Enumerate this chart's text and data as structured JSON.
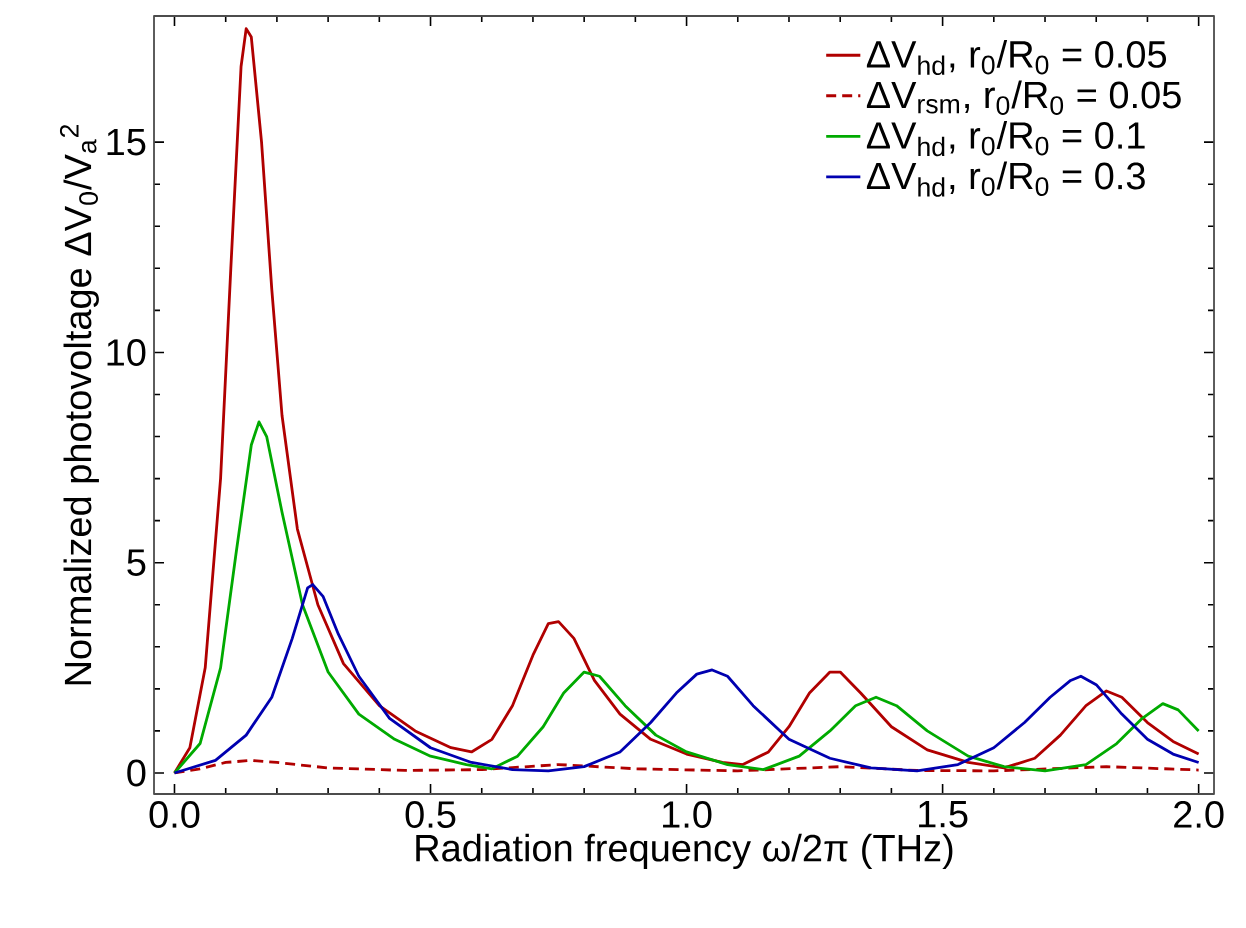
{
  "chart_data": {
    "type": "line",
    "xlabel": "Radiation frequency ω/2π (THz)",
    "ylabel": "Normalized photovoltage  ΔV$_{0}$/V$_{a}$$^{2}$",
    "xlim": [
      -0.04,
      2.03
    ],
    "ylim": [
      -0.5,
      18
    ],
    "xticks": [
      {
        "value": 0,
        "label": "0.0"
      },
      0.5,
      {
        "value": 1,
        "label": "1.0"
      },
      1.5,
      {
        "value": 2,
        "label": "2.0"
      }
    ],
    "yticks": [
      0,
      5,
      10,
      15
    ],
    "legend": "top right",
    "marker": "none",
    "series": [
      {
        "name": "ΔV$_{hd}$, r$_{0}$/R$_{0}$ = 0.05",
        "color": "#b00000",
        "line_style": "solid",
        "x": [
          0,
          0.03,
          0.06,
          0.09,
          0.11,
          0.13,
          0.14,
          0.15,
          0.17,
          0.19,
          0.21,
          0.24,
          0.28,
          0.33,
          0.4,
          0.47,
          0.54,
          0.58,
          0.62,
          0.66,
          0.7,
          0.73,
          0.75,
          0.78,
          0.82,
          0.87,
          0.93,
          1.0,
          1.07,
          1.11,
          1.16,
          1.2,
          1.24,
          1.28,
          1.3,
          1.34,
          1.4,
          1.47,
          1.55,
          1.62,
          1.68,
          1.73,
          1.78,
          1.82,
          1.85,
          1.9,
          1.95,
          2.0
        ],
        "values": [
          0,
          0.6,
          2.5,
          7,
          12,
          16.8,
          17.7,
          17.5,
          15,
          11.5,
          8.5,
          5.8,
          4.0,
          2.6,
          1.6,
          1.0,
          0.6,
          0.5,
          0.8,
          1.6,
          2.8,
          3.55,
          3.6,
          3.2,
          2.2,
          1.4,
          0.8,
          0.45,
          0.25,
          0.2,
          0.5,
          1.1,
          1.9,
          2.4,
          2.4,
          1.9,
          1.1,
          0.55,
          0.25,
          0.12,
          0.35,
          0.9,
          1.6,
          1.95,
          1.8,
          1.2,
          0.75,
          0.45
        ]
      },
      {
        "name": "ΔV$_{rsm}$, r$_{0}$/R$_{0}$ = 0.05",
        "color": "#b00000",
        "line_style": "dashed",
        "x": [
          0,
          0.05,
          0.1,
          0.15,
          0.2,
          0.3,
          0.45,
          0.6,
          0.75,
          0.9,
          1.1,
          1.3,
          1.45,
          1.6,
          1.82,
          2.0
        ],
        "values": [
          0,
          0.1,
          0.25,
          0.3,
          0.25,
          0.12,
          0.06,
          0.08,
          0.2,
          0.1,
          0.05,
          0.15,
          0.06,
          0.05,
          0.15,
          0.07
        ]
      },
      {
        "name": "ΔV$_{hd}$, r$_{0}$/R$_{0}$ = 0.1",
        "color": "#00aa00",
        "line_style": "solid",
        "x": [
          0,
          0.05,
          0.09,
          0.12,
          0.15,
          0.165,
          0.18,
          0.21,
          0.25,
          0.3,
          0.36,
          0.43,
          0.5,
          0.57,
          0.62,
          0.67,
          0.72,
          0.76,
          0.8,
          0.83,
          0.88,
          0.94,
          1.0,
          1.08,
          1.15,
          1.22,
          1.28,
          1.33,
          1.37,
          1.41,
          1.47,
          1.55,
          1.62,
          1.7,
          1.78,
          1.84,
          1.89,
          1.93,
          1.96,
          2.0
        ],
        "values": [
          0,
          0.7,
          2.5,
          5.2,
          7.8,
          8.35,
          8.0,
          6.2,
          4.0,
          2.4,
          1.4,
          0.8,
          0.4,
          0.2,
          0.1,
          0.4,
          1.1,
          1.9,
          2.4,
          2.3,
          1.6,
          0.9,
          0.5,
          0.2,
          0.08,
          0.4,
          1.0,
          1.6,
          1.8,
          1.6,
          1.0,
          0.4,
          0.15,
          0.05,
          0.2,
          0.7,
          1.3,
          1.65,
          1.5,
          1.0
        ]
      },
      {
        "name": "ΔV$_{hd}$, r$_{0}$/R$_{0}$ = 0.3",
        "color": "#0000b0",
        "line_style": "solid",
        "x": [
          0,
          0.08,
          0.14,
          0.19,
          0.23,
          0.26,
          0.27,
          0.29,
          0.32,
          0.36,
          0.42,
          0.5,
          0.58,
          0.66,
          0.73,
          0.8,
          0.87,
          0.93,
          0.98,
          1.02,
          1.05,
          1.08,
          1.13,
          1.2,
          1.28,
          1.36,
          1.45,
          1.53,
          1.6,
          1.66,
          1.71,
          1.75,
          1.77,
          1.8,
          1.85,
          1.9,
          1.95,
          2.0
        ],
        "values": [
          0,
          0.3,
          0.9,
          1.8,
          3.2,
          4.4,
          4.48,
          4.2,
          3.3,
          2.3,
          1.3,
          0.6,
          0.25,
          0.08,
          0.05,
          0.15,
          0.5,
          1.2,
          1.9,
          2.35,
          2.45,
          2.3,
          1.6,
          0.8,
          0.35,
          0.12,
          0.05,
          0.2,
          0.6,
          1.2,
          1.8,
          2.2,
          2.3,
          2.1,
          1.4,
          0.8,
          0.45,
          0.25
        ]
      }
    ]
  }
}
